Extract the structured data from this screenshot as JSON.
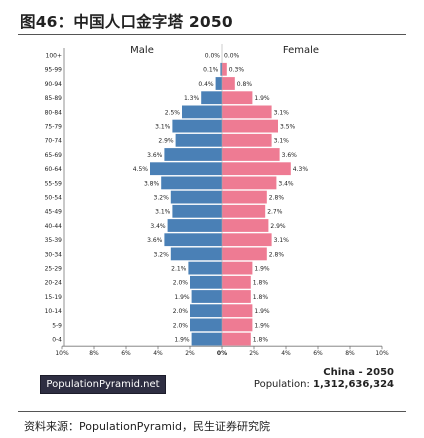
{
  "page": {
    "title": "图46：中国人口金字塔 2050",
    "source": "资料来源：PopulationPyramid，民生证券研究院",
    "logo_text": "PopulationPyramid.net",
    "country": "China - 2050",
    "population_label": "Population:",
    "population_value": "1,312,636,324"
  },
  "chart_data": {
    "type": "bar",
    "orientation": "horizontal-pyramid",
    "title": "",
    "categories": [
      "100+",
      "95-99",
      "90-94",
      "85-89",
      "80-84",
      "75-79",
      "70-74",
      "65-69",
      "60-64",
      "55-59",
      "50-54",
      "45-49",
      "40-44",
      "35-39",
      "30-34",
      "25-29",
      "20-24",
      "15-19",
      "10-14",
      "5-9",
      "0-4"
    ],
    "series": [
      {
        "name": "Male",
        "color": "#4a80b6",
        "values": [
          0.0,
          0.1,
          0.4,
          1.3,
          2.5,
          3.1,
          2.9,
          3.6,
          4.5,
          3.8,
          3.2,
          3.1,
          3.4,
          3.6,
          3.2,
          2.1,
          2.0,
          1.9,
          2.0,
          2.0,
          1.9
        ],
        "labels": [
          "0.0%",
          "0.1%",
          "0.4%",
          "1.3%",
          "2.5%",
          "3.1%",
          "2.9%",
          "3.6%",
          "4.5%",
          "3.8%",
          "3.2%",
          "3.1%",
          "3.4%",
          "3.6%",
          "3.2%",
          "2.1%",
          "2.0%",
          "1.9%",
          "2.0%",
          "2.0%",
          "1.9%"
        ]
      },
      {
        "name": "Female",
        "color": "#ee7b93",
        "values": [
          0.0,
          0.3,
          0.8,
          1.9,
          3.1,
          3.5,
          3.1,
          3.6,
          4.3,
          3.4,
          2.8,
          2.7,
          2.9,
          3.1,
          2.8,
          1.9,
          1.8,
          1.8,
          1.9,
          1.9,
          1.8
        ],
        "labels": [
          "0.0%",
          "0.3%",
          "0.8%",
          "1.9%",
          "3.1%",
          "3.5%",
          "3.1%",
          "3.6%",
          "4.3%",
          "3.4%",
          "2.8%",
          "2.7%",
          "2.9%",
          "3.1%",
          "2.8%",
          "1.9%",
          "1.8%",
          "1.8%",
          "1.9%",
          "1.9%",
          "1.8%"
        ]
      }
    ],
    "xlim": [
      -10,
      10
    ],
    "xticks": [
      -10,
      -8,
      -6,
      -4,
      -2,
      0,
      2,
      4,
      6,
      8,
      10
    ],
    "xtick_labels": [
      "10%",
      "8%",
      "6%",
      "4%",
      "2%",
      "0%",
      "2%",
      "4%",
      "6%",
      "8%",
      "10%"
    ],
    "grid": false
  }
}
